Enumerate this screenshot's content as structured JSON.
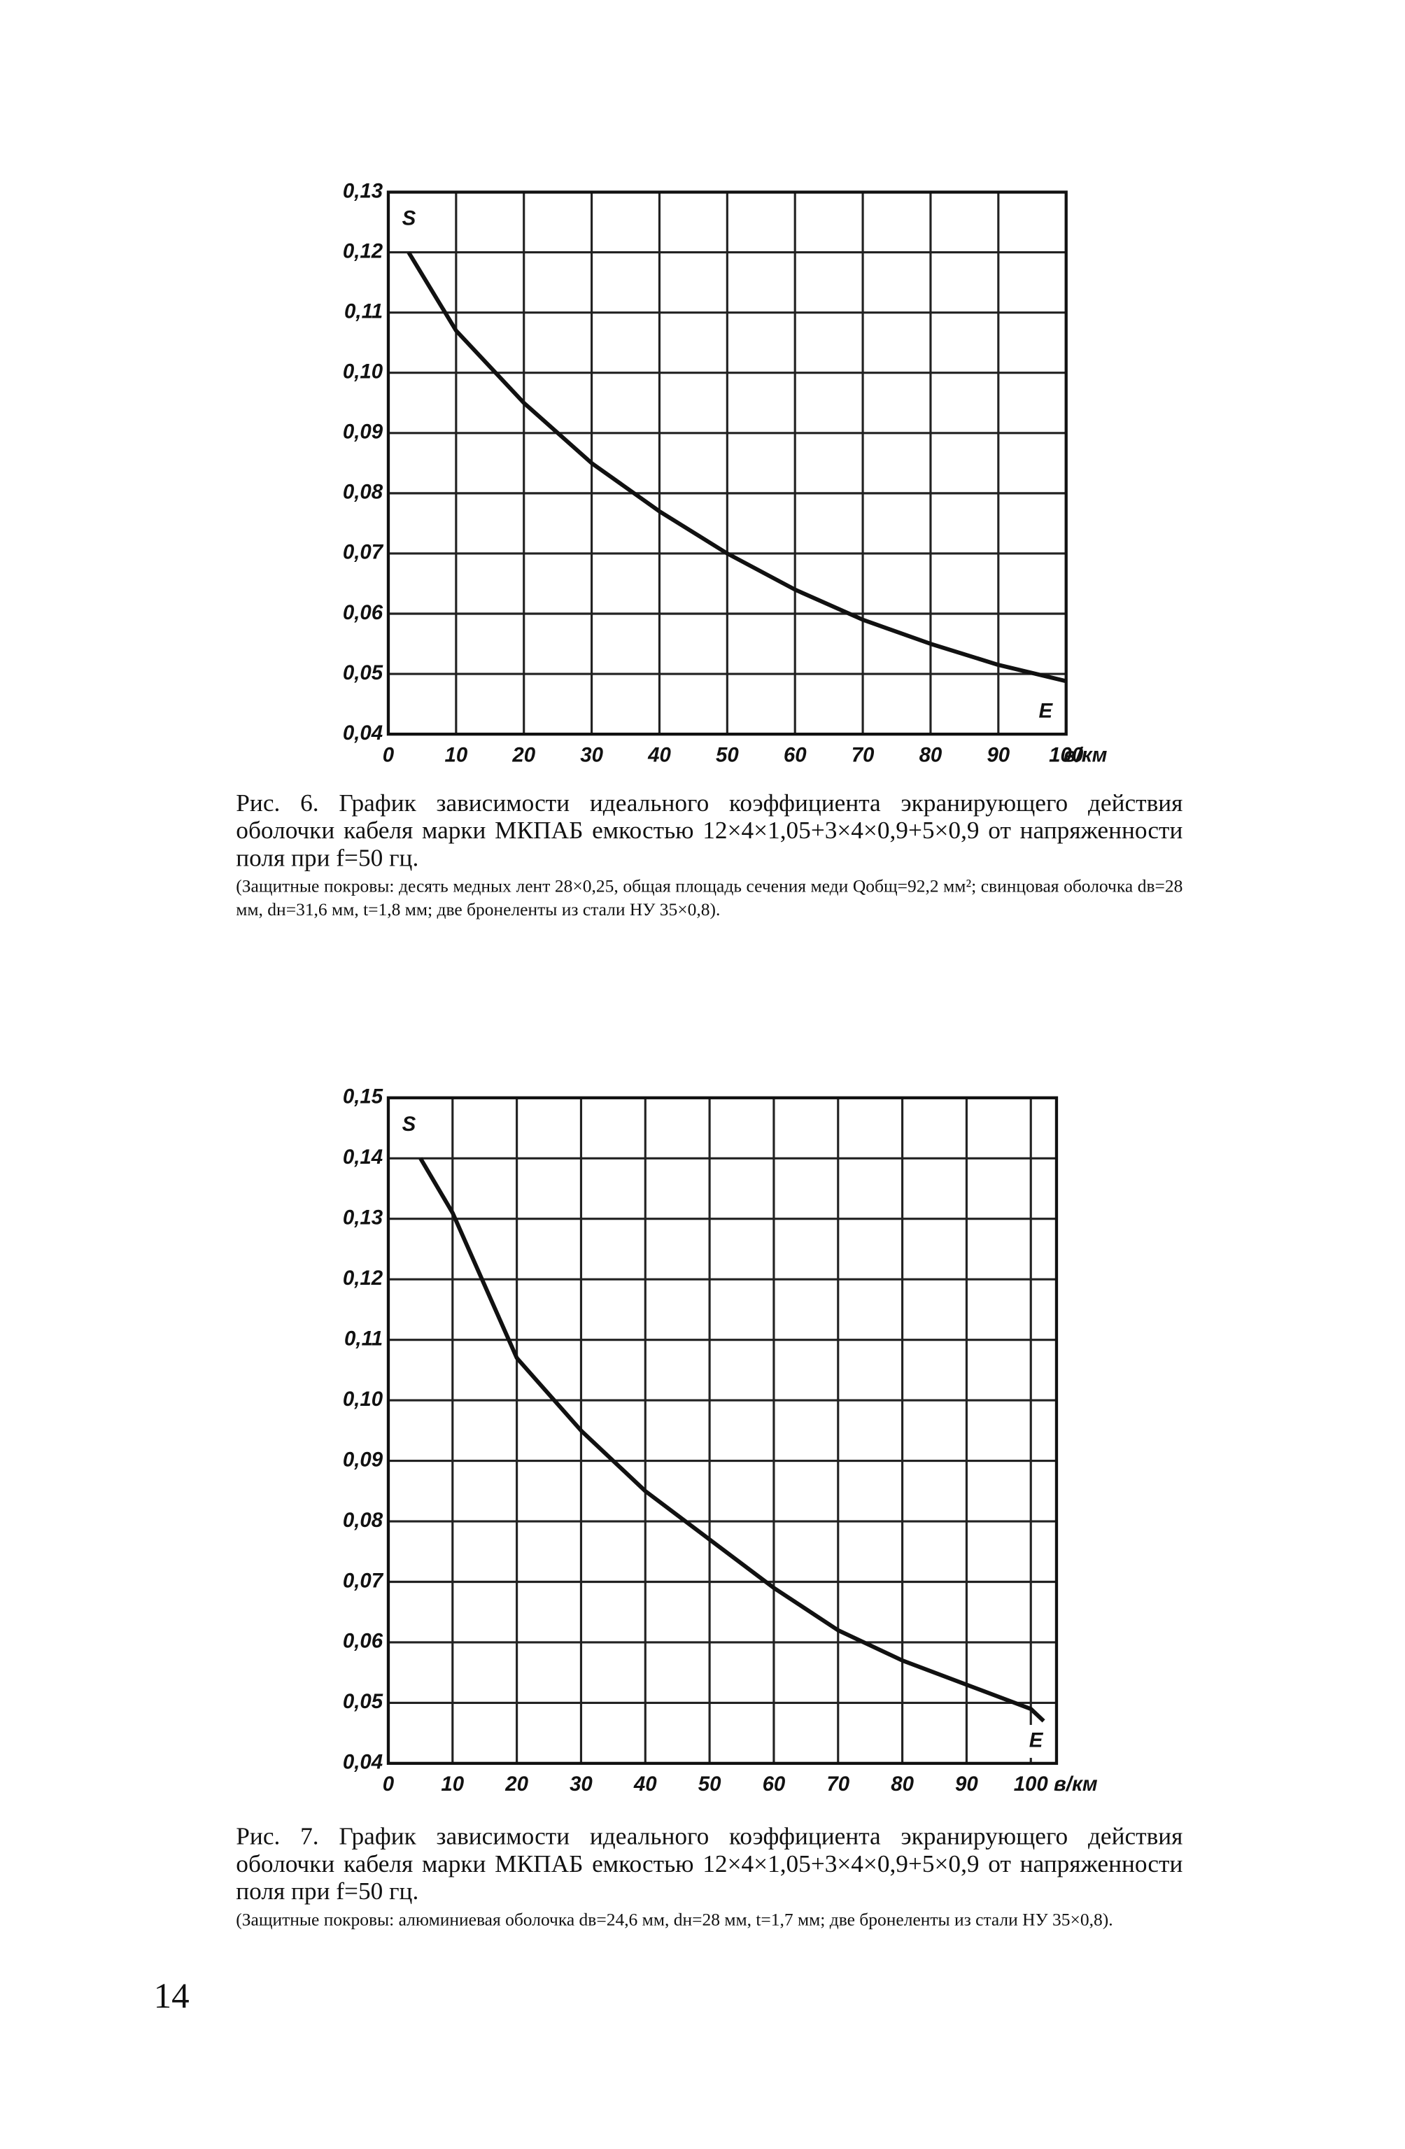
{
  "chart_data": [
    {
      "type": "line",
      "y_label": "S",
      "x_label": "E",
      "x_unit": "в/км",
      "x": [
        3,
        10,
        20,
        30,
        40,
        50,
        60,
        70,
        80,
        90,
        100
      ],
      "series": [
        {
          "color": "#111111",
          "values": [
            0.12,
            0.107,
            0.095,
            0.085,
            0.077,
            0.07,
            0.064,
            0.059,
            0.055,
            0.0515,
            0.0488
          ]
        }
      ],
      "xlim": [
        0,
        100
      ],
      "ylim": [
        0.04,
        0.13
      ],
      "xticks": [
        0,
        10,
        20,
        30,
        40,
        50,
        60,
        70,
        80,
        90,
        100
      ],
      "yticks": [
        {
          "value": 0.04,
          "label": "0,04"
        },
        {
          "value": 0.05,
          "label": "0,05"
        },
        {
          "value": 0.06,
          "label": "0,06"
        },
        {
          "value": 0.07,
          "label": "0,07"
        },
        {
          "value": 0.08,
          "label": "0,08"
        },
        {
          "value": 0.09,
          "label": "0,09"
        },
        {
          "value": 0.1,
          "label": "0,10"
        },
        {
          "value": 0.11,
          "label": "0,11"
        },
        {
          "value": 0.12,
          "label": "0,12"
        },
        {
          "value": 0.13,
          "label": "0,13"
        }
      ],
      "grid": true,
      "caption": "Рис. 6. График зависимости идеального коэффициента экранирующего действия оболочки кабеля марки МКПАБ емкостью 12×4×1,05+3×4×0,9+5×0,9 от напряженности поля при f=50 гц.",
      "note": "(Защитные покровы: десять медных лент 28×0,25, общая площадь сечения меди Qобщ=92,2 мм²; свинцовая оболочка dв=28 мм, dн=31,6 мм, t=1,8 мм; две бронеленты из стали НУ 35×0,8)."
    },
    {
      "type": "line",
      "y_label": "S",
      "x_label": "E",
      "x_unit": "в/км",
      "x": [
        5,
        10,
        20,
        30,
        40,
        50,
        60,
        70,
        80,
        90,
        100,
        102
      ],
      "series": [
        {
          "color": "#111111",
          "values": [
            0.14,
            0.131,
            0.107,
            0.095,
            0.085,
            0.077,
            0.069,
            0.062,
            0.057,
            0.053,
            0.049,
            0.047
          ]
        }
      ],
      "xlim": [
        0,
        104
      ],
      "ylim": [
        0.04,
        0.15
      ],
      "xticks": [
        0,
        10,
        20,
        30,
        40,
        50,
        60,
        70,
        80,
        90,
        100
      ],
      "yticks": [
        {
          "value": 0.04,
          "label": "0,04"
        },
        {
          "value": 0.05,
          "label": "0,05"
        },
        {
          "value": 0.06,
          "label": "0,06"
        },
        {
          "value": 0.07,
          "label": "0,07"
        },
        {
          "value": 0.08,
          "label": "0,08"
        },
        {
          "value": 0.09,
          "label": "0,09"
        },
        {
          "value": 0.1,
          "label": "0,10"
        },
        {
          "value": 0.11,
          "label": "0,11"
        },
        {
          "value": 0.12,
          "label": "0,12"
        },
        {
          "value": 0.13,
          "label": "0,13"
        },
        {
          "value": 0.14,
          "label": "0,14"
        },
        {
          "value": 0.15,
          "label": "0,15"
        }
      ],
      "grid": true,
      "caption": "Рис. 7. График зависимости идеального коэффициента экранирующего действия оболочки кабеля марки МКПАБ емкостью 12×4×1,05+3×4×0,9+5×0,9 от напряженности поля при f=50 гц.",
      "note": "(Защитные покровы: алюминиевая оболочка dв=24,6 мм, dн=28 мм, t=1,7 мм; две бронеленты из стали НУ 35×0,8)."
    }
  ],
  "page_number": "14"
}
